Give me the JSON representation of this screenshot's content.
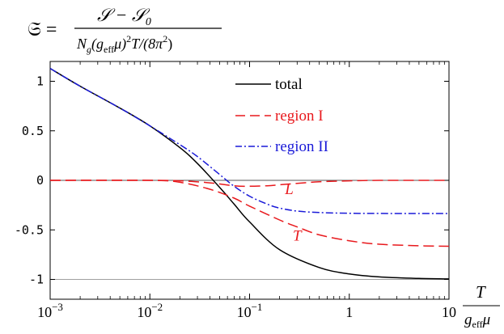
{
  "formula": {
    "lhs": "𝔖 =",
    "numerator": "𝒮 − 𝒮",
    "numerator_sub": "0",
    "denominator_parts": [
      "N",
      "g",
      "(g",
      "eff",
      "μ)",
      "2",
      "T/(8π",
      "2",
      ")"
    ]
  },
  "x_axis_label": {
    "numerator": "T",
    "denominator_main": "g",
    "denominator_sub": "eff",
    "denominator_tail": "μ"
  },
  "colors": {
    "total": "#000000",
    "region_I": "#e8191d",
    "region_II": "#1a1ad8",
    "grid": "#a0a0a0"
  },
  "chart_data": {
    "type": "line",
    "x_scale": "log",
    "xlim": [
      0.001,
      10
    ],
    "ylim": [
      -1.2,
      1.2
    ],
    "x_ticks": [
      0.001,
      0.01,
      0.1,
      1,
      10
    ],
    "x_tick_labels": [
      {
        "base": "10",
        "exp": "−3"
      },
      {
        "base": "10",
        "exp": "−2"
      },
      {
        "base": "10",
        "exp": "−1"
      },
      {
        "base": "1",
        "exp": ""
      },
      {
        "base": "10",
        "exp": ""
      }
    ],
    "y_ticks": [
      1,
      0.5,
      0,
      -0.5,
      -1
    ],
    "y_tick_labels": [
      "1",
      "0.5",
      "0",
      "-0.5",
      "-1"
    ],
    "reference_lines": [
      0,
      -1
    ],
    "legend_position": "top-right",
    "legend": [
      "total",
      "region I",
      "region II"
    ],
    "annotations": [
      {
        "text": "L",
        "x": 0.25,
        "y": -0.08
      },
      {
        "text": "T",
        "x": 0.3,
        "y": -0.55
      }
    ],
    "series": [
      {
        "name": "total",
        "style": "solid",
        "x": [
          0.001,
          0.002,
          0.005,
          0.01,
          0.02,
          0.03,
          0.05,
          0.07,
          0.1,
          0.2,
          0.5,
          1,
          2,
          5,
          10
        ],
        "y": [
          1.13,
          0.95,
          0.73,
          0.55,
          0.33,
          0.17,
          -0.07,
          -0.24,
          -0.42,
          -0.7,
          -0.88,
          -0.945,
          -0.975,
          -0.99,
          -0.995
        ]
      },
      {
        "name": "region I (L)",
        "style": "dashed",
        "x": [
          0.001,
          0.01,
          0.02,
          0.04,
          0.07,
          0.1,
          0.15,
          0.2,
          0.3,
          0.5,
          1,
          2,
          5,
          10
        ],
        "y": [
          0,
          0,
          -0.005,
          -0.025,
          -0.055,
          -0.06,
          -0.055,
          -0.045,
          -0.03,
          -0.015,
          -0.005,
          0,
          0,
          0
        ]
      },
      {
        "name": "region I (T)",
        "style": "dashed",
        "x": [
          0.001,
          0.01,
          0.02,
          0.04,
          0.07,
          0.1,
          0.2,
          0.3,
          0.5,
          1,
          2,
          5,
          10
        ],
        "y": [
          0,
          0,
          -0.02,
          -0.09,
          -0.18,
          -0.26,
          -0.4,
          -0.47,
          -0.55,
          -0.61,
          -0.645,
          -0.66,
          -0.665
        ]
      },
      {
        "name": "region II",
        "style": "dashdot",
        "x": [
          0.001,
          0.002,
          0.005,
          0.01,
          0.02,
          0.03,
          0.05,
          0.07,
          0.1,
          0.15,
          0.2,
          0.3,
          0.5,
          1,
          2,
          5,
          10
        ],
        "y": [
          1.13,
          0.95,
          0.73,
          0.55,
          0.36,
          0.24,
          0.06,
          -0.06,
          -0.16,
          -0.24,
          -0.28,
          -0.31,
          -0.325,
          -0.332,
          -0.334,
          -0.335,
          -0.335
        ]
      }
    ]
  }
}
